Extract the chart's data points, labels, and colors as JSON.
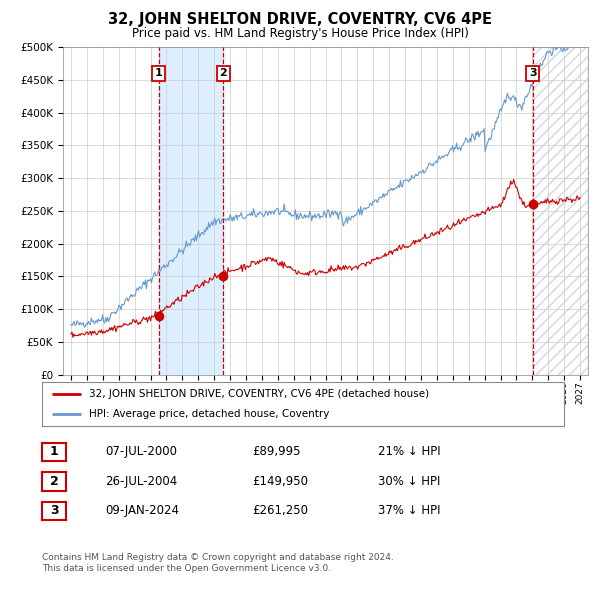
{
  "title": "32, JOHN SHELTON DRIVE, COVENTRY, CV6 4PE",
  "subtitle": "Price paid vs. HM Land Registry's House Price Index (HPI)",
  "legend_line1": "32, JOHN SHELTON DRIVE, COVENTRY, CV6 4PE (detached house)",
  "legend_line2": "HPI: Average price, detached house, Coventry",
  "footer1": "Contains HM Land Registry data © Crown copyright and database right 2024.",
  "footer2": "This data is licensed under the Open Government Licence v3.0.",
  "transactions": [
    {
      "num": 1,
      "date": "07-JUL-2000",
      "price": 89995,
      "hpi_pct": "21% ↓ HPI"
    },
    {
      "num": 2,
      "date": "26-JUL-2004",
      "price": 149950,
      "hpi_pct": "30% ↓ HPI"
    },
    {
      "num": 3,
      "date": "09-JAN-2024",
      "price": 261250,
      "hpi_pct": "37% ↓ HPI"
    }
  ],
  "vline_dates": [
    2000.52,
    2004.57,
    2024.02
  ],
  "shade_x0": 2000.52,
  "shade_x1": 2004.57,
  "shade_color": "#ddeeff",
  "hatch_x0": 2024.02,
  "hatch_x1": 2027.5,
  "red_line_color": "#cc0000",
  "blue_line_color": "#6699cc",
  "vline_color": "#cc0000",
  "dot_color": "#cc0000",
  "ylim": [
    0,
    500000
  ],
  "xlim": [
    1994.5,
    2027.5
  ],
  "background_color": "#ffffff",
  "grid_color": "#cccccc"
}
